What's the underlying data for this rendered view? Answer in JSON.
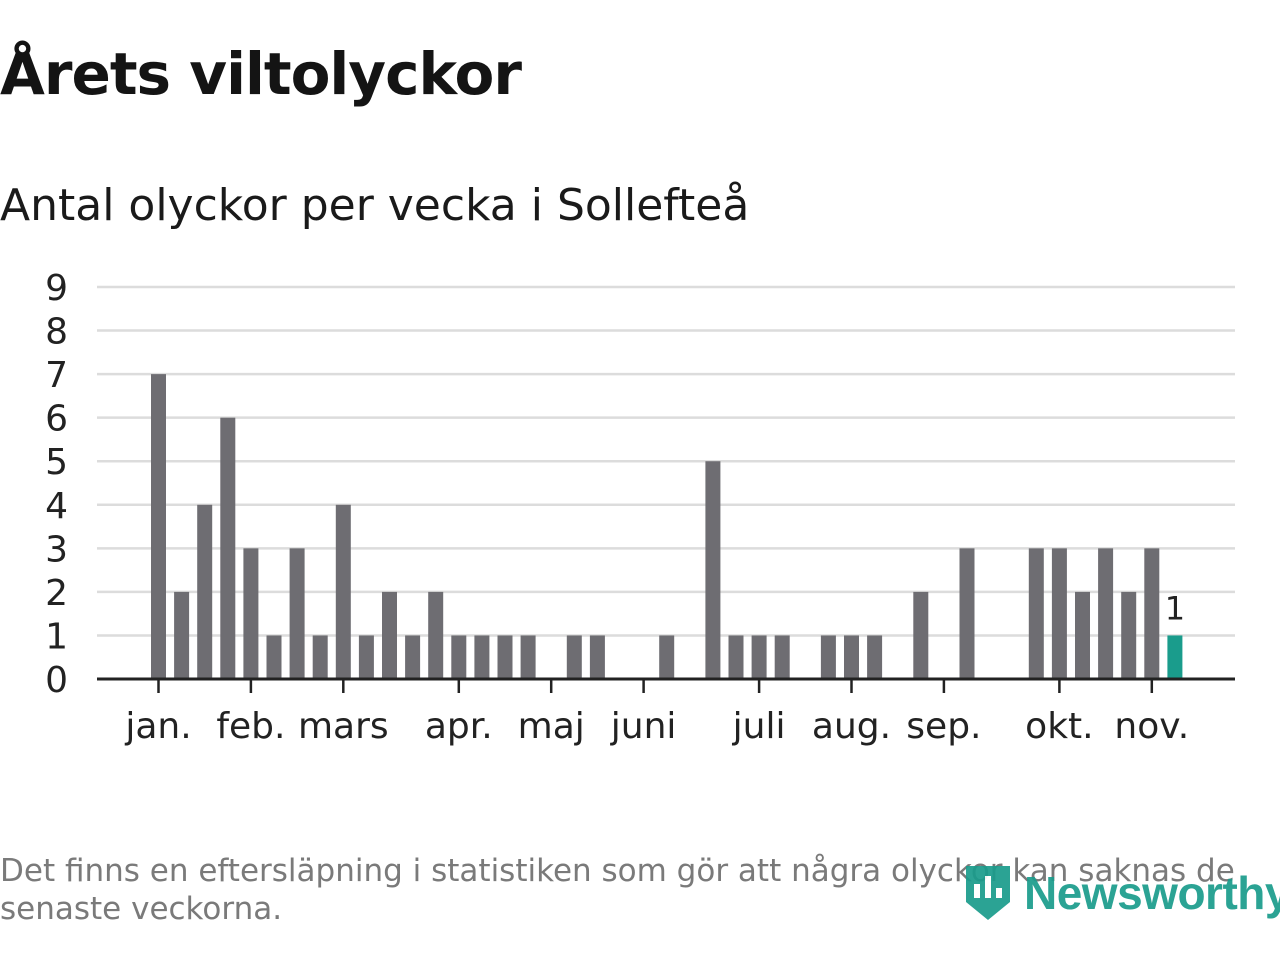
{
  "header": {
    "title": "Årets viltolyckor",
    "subtitle": "Antal olyckor per vecka i Sollefteå"
  },
  "footer": {
    "note": "Det finns en eftersläpning i statistiken som gör att några olyckor kan saknas de senaste veckorna.",
    "brand": "Newsworthy",
    "brand_icon": "bar-chart-badge-icon"
  },
  "colors": {
    "bar": "#6e6d72",
    "highlight": "#1a9c8c",
    "grid": "#dcdcdc",
    "axis": "#222222",
    "text": "#222222",
    "note": "#7a7a7a"
  },
  "chart_data": {
    "type": "bar",
    "title": "Antal olyckor per vecka i Sollefteå",
    "xlabel": "",
    "ylabel": "",
    "ylim": [
      0,
      9
    ],
    "yticks": [
      0,
      1,
      2,
      3,
      4,
      5,
      6,
      7,
      8,
      9
    ],
    "x": [
      1,
      2,
      3,
      4,
      5,
      6,
      7,
      8,
      9,
      10,
      11,
      12,
      13,
      14,
      15,
      16,
      17,
      18,
      19,
      20,
      21,
      22,
      23,
      24,
      25,
      26,
      27,
      28,
      29,
      30,
      31,
      32,
      33,
      34,
      35,
      36,
      37,
      38,
      39,
      40,
      41,
      42,
      43,
      44,
      45,
      46
    ],
    "xlabel_unit": "week",
    "values": [
      7,
      2,
      4,
      6,
      3,
      1,
      3,
      1,
      4,
      1,
      2,
      1,
      2,
      1,
      1,
      1,
      1,
      0,
      1,
      1,
      0,
      0,
      1,
      0,
      5,
      1,
      1,
      1,
      0,
      1,
      1,
      1,
      0,
      2,
      0,
      3,
      0,
      0,
      3,
      3,
      2,
      3,
      2,
      3,
      1,
      0
    ],
    "highlight_index": 44,
    "highlight_label": "1",
    "month_ticks": [
      {
        "label": "jan.",
        "week": 1
      },
      {
        "label": "feb.",
        "week": 5
      },
      {
        "label": "mars",
        "week": 9
      },
      {
        "label": "apr.",
        "week": 14
      },
      {
        "label": "maj",
        "week": 18
      },
      {
        "label": "juni",
        "week": 22
      },
      {
        "label": "juli",
        "week": 27
      },
      {
        "label": "aug.",
        "week": 31
      },
      {
        "label": "sep.",
        "week": 35
      },
      {
        "label": "okt.",
        "week": 40
      },
      {
        "label": "nov.",
        "week": 44
      }
    ],
    "grid": true,
    "legend": "none"
  }
}
